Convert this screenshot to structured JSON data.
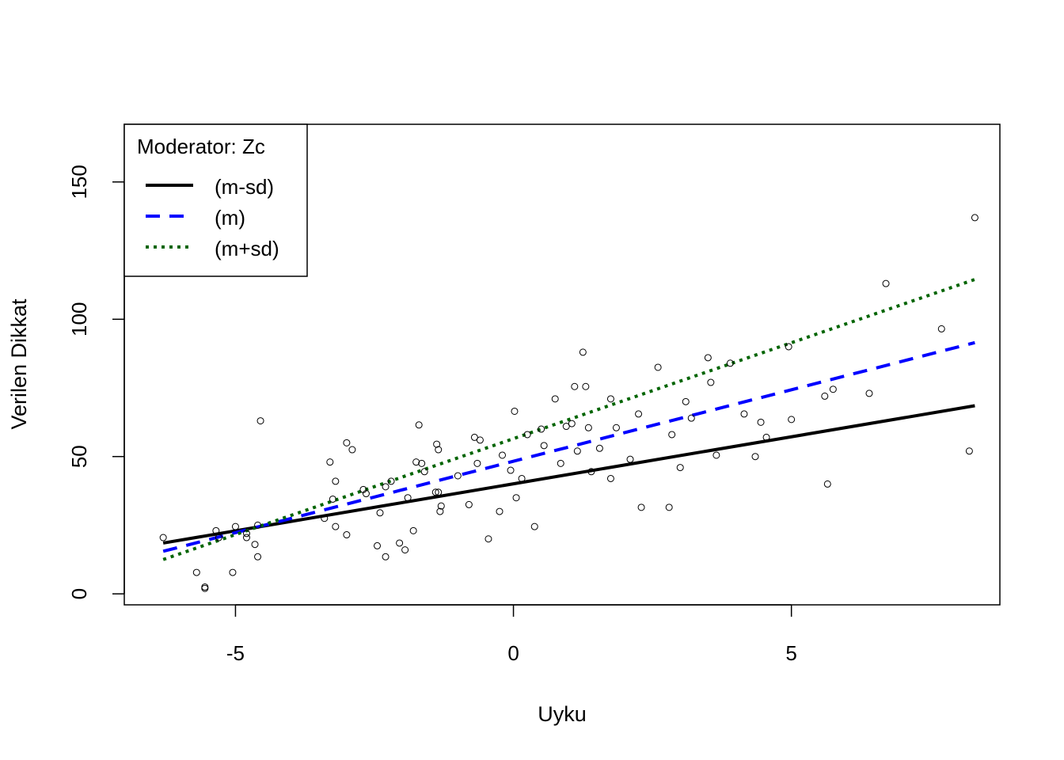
{
  "chart_data": {
    "type": "scatter",
    "title": "",
    "xlabel": "Uyku",
    "ylabel": "Verilen Dikkat",
    "xlim": [
      -7,
      8.75
    ],
    "ylim": [
      -4,
      171
    ],
    "x_ticks": [
      -5,
      0,
      5
    ],
    "x_tick_labels": [
      "-5",
      "0",
      "5"
    ],
    "y_ticks": [
      0,
      50,
      100,
      150
    ],
    "y_tick_labels": [
      "0",
      "50",
      "100",
      "150"
    ],
    "grid": false,
    "legend": {
      "title": "Moderator: Zc",
      "position": "top-left",
      "entries": [
        {
          "label": "(m-sd)",
          "color": "#000000",
          "style": "solid"
        },
        {
          "label": "(m)",
          "color": "#0000ff",
          "style": "dashed"
        },
        {
          "label": "(m+sd)",
          "color": "#006400",
          "style": "dotted"
        }
      ]
    },
    "series": [
      {
        "name": "(m-sd)",
        "type": "line",
        "color": "#000000",
        "style": "solid",
        "x": [
          -6.3,
          8.3
        ],
        "y": [
          18.5,
          68.5
        ]
      },
      {
        "name": "(m)",
        "type": "line",
        "color": "#0000ff",
        "style": "dashed",
        "x": [
          -6.3,
          8.3
        ],
        "y": [
          15.5,
          91.5
        ]
      },
      {
        "name": "(m+sd)",
        "type": "line",
        "color": "#006400",
        "style": "dotted",
        "x": [
          -6.3,
          8.3
        ],
        "y": [
          12.5,
          114.5
        ]
      },
      {
        "type": "scatter",
        "color": "#000000",
        "points": [
          [
            -6.3,
            20.5
          ],
          [
            -5.7,
            7.8
          ],
          [
            -5.55,
            2.5
          ],
          [
            -5.55,
            2.0
          ],
          [
            -5.35,
            23.0
          ],
          [
            -5.3,
            20.5
          ],
          [
            -5.05,
            7.8
          ],
          [
            -5.0,
            24.5
          ],
          [
            -4.8,
            20.5
          ],
          [
            -4.8,
            22.0
          ],
          [
            -4.65,
            18.0
          ],
          [
            -4.6,
            13.5
          ],
          [
            -4.6,
            25.0
          ],
          [
            -4.55,
            63.0
          ],
          [
            -3.4,
            27.5
          ],
          [
            -3.3,
            48.0
          ],
          [
            -3.25,
            34.5
          ],
          [
            -3.2,
            41.0
          ],
          [
            -3.2,
            24.5
          ],
          [
            -3.0,
            21.5
          ],
          [
            -3.0,
            55.0
          ],
          [
            -2.9,
            52.5
          ],
          [
            -2.7,
            38.0
          ],
          [
            -2.65,
            36.5
          ],
          [
            -2.45,
            17.5
          ],
          [
            -2.4,
            29.5
          ],
          [
            -2.3,
            13.5
          ],
          [
            -2.3,
            39.0
          ],
          [
            -2.2,
            41.0
          ],
          [
            -2.05,
            18.5
          ],
          [
            -1.95,
            16.0
          ],
          [
            -1.9,
            35.0
          ],
          [
            -1.8,
            23.0
          ],
          [
            -1.75,
            48.0
          ],
          [
            -1.7,
            61.5
          ],
          [
            -1.65,
            47.5
          ],
          [
            -1.6,
            44.5
          ],
          [
            -1.4,
            37.0
          ],
          [
            -1.38,
            54.5
          ],
          [
            -1.35,
            52.5
          ],
          [
            -1.35,
            37.0
          ],
          [
            -1.32,
            30.0
          ],
          [
            -1.3,
            32.0
          ],
          [
            -1.0,
            43.0
          ],
          [
            -0.8,
            32.5
          ],
          [
            -0.7,
            57.0
          ],
          [
            -0.65,
            47.5
          ],
          [
            -0.6,
            56.0
          ],
          [
            -0.45,
            20.0
          ],
          [
            -0.25,
            30.0
          ],
          [
            -0.2,
            50.5
          ],
          [
            -0.05,
            45.0
          ],
          [
            0.02,
            66.5
          ],
          [
            0.05,
            35.0
          ],
          [
            0.15,
            42.0
          ],
          [
            0.25,
            58.0
          ],
          [
            0.38,
            24.5
          ],
          [
            0.5,
            60.0
          ],
          [
            0.55,
            54.0
          ],
          [
            0.75,
            71.0
          ],
          [
            0.85,
            47.5
          ],
          [
            0.95,
            61.0
          ],
          [
            1.05,
            62.0
          ],
          [
            1.1,
            75.5
          ],
          [
            1.15,
            52.0
          ],
          [
            1.25,
            88.0
          ],
          [
            1.3,
            75.5
          ],
          [
            1.35,
            60.5
          ],
          [
            1.4,
            44.5
          ],
          [
            1.55,
            53.0
          ],
          [
            1.75,
            71.0
          ],
          [
            1.75,
            42.0
          ],
          [
            1.85,
            60.5
          ],
          [
            2.1,
            49.0
          ],
          [
            2.25,
            65.5
          ],
          [
            2.3,
            31.5
          ],
          [
            2.6,
            82.5
          ],
          [
            2.8,
            31.5
          ],
          [
            2.85,
            58.0
          ],
          [
            3.0,
            46.0
          ],
          [
            3.1,
            70.0
          ],
          [
            3.2,
            64.0
          ],
          [
            3.5,
            86.0
          ],
          [
            3.55,
            77.0
          ],
          [
            3.65,
            50.5
          ],
          [
            3.9,
            84.0
          ],
          [
            4.15,
            65.5
          ],
          [
            4.35,
            50.0
          ],
          [
            4.45,
            62.5
          ],
          [
            4.55,
            57.0
          ],
          [
            4.95,
            90.0
          ],
          [
            5.0,
            63.5
          ],
          [
            5.6,
            72.0
          ],
          [
            5.65,
            40.0
          ],
          [
            5.75,
            74.5
          ],
          [
            6.4,
            73.0
          ],
          [
            6.7,
            113.0
          ],
          [
            7.7,
            96.5
          ],
          [
            8.2,
            52.0
          ],
          [
            8.3,
            137.0
          ]
        ]
      }
    ]
  }
}
